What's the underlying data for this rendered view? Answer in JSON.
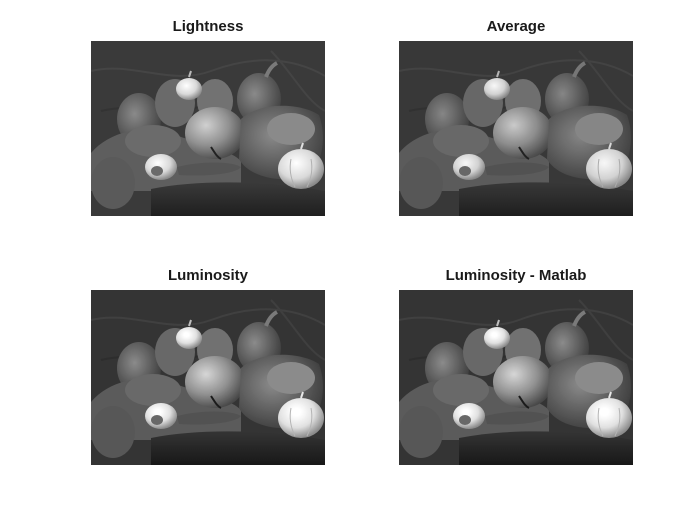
{
  "figure": {
    "panels": [
      {
        "title": "Lightness"
      },
      {
        "title": "Average"
      },
      {
        "title": "Luminosity"
      },
      {
        "title": "Luminosity - Matlab"
      }
    ]
  },
  "colors": {
    "background": "#ffffff",
    "backdrop": "#3a3a3a",
    "cloth": "#2e2e2e",
    "pepper_dark": "#5c5c5c",
    "pepper_mid": "#787878",
    "pepper_light": "#9a9a9a",
    "garlic": "#dedede"
  }
}
